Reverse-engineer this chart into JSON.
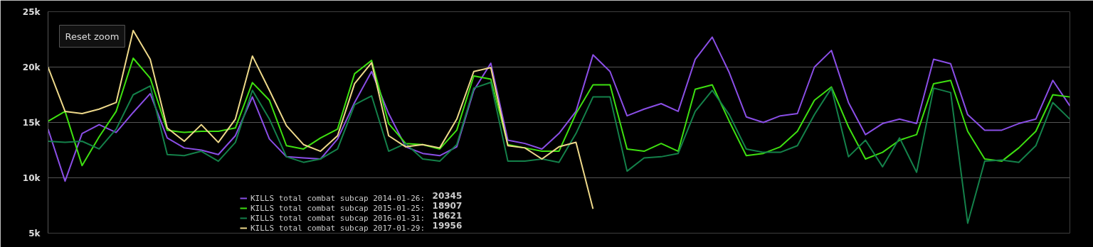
{
  "chart_data": {
    "type": "line",
    "categories": [
      null,
      null,
      null,
      null,
      null,
      null,
      null,
      null,
      null,
      null,
      null,
      null,
      null,
      null,
      null,
      null,
      null,
      null,
      null,
      null,
      null,
      null,
      null,
      null,
      null,
      null,
      null,
      null,
      null,
      null,
      null,
      null,
      null,
      null,
      null,
      null,
      null,
      null,
      null,
      null,
      null,
      null,
      null,
      null,
      null,
      null,
      null,
      null,
      null,
      null,
      null,
      null,
      null,
      null,
      null,
      null,
      null,
      null,
      null,
      null,
      null
    ],
    "ylim": [
      5000,
      25000
    ],
    "yticks": [
      {
        "value": 5000,
        "label": "5k"
      },
      {
        "value": 10000,
        "label": "10k"
      },
      {
        "value": 15000,
        "label": "15k"
      },
      {
        "value": 20000,
        "label": "20k"
      },
      {
        "value": 25000,
        "label": "25k"
      }
    ],
    "grid": "y",
    "legend": "bottom",
    "marker": "none",
    "line_style": "solid",
    "annotations": [
      "Reset zoom",
      "20345",
      "18907",
      "18621",
      "19956"
    ],
    "series": [
      {
        "name": "KILLS total combat subcap 2014-01-26:",
        "color": "#8a4ee6",
        "values": [
          14400,
          9700,
          14000,
          14800,
          14100,
          15900,
          17600,
          13600,
          12700,
          12500,
          12100,
          13800,
          17300,
          13500,
          11900,
          11800,
          11700,
          13500,
          16800,
          19600,
          15800,
          12800,
          12200,
          12000,
          12800,
          17900,
          20345,
          13400,
          13100,
          12600,
          14000,
          16000,
          21100,
          19600,
          15600,
          16200,
          16700,
          16000,
          20700,
          22700,
          19500,
          15500,
          15000,
          15600,
          15800,
          20000,
          21500,
          16800,
          13900,
          14900,
          15300,
          14900,
          20700,
          20300,
          15700,
          14300,
          14300,
          14900,
          15300,
          18800,
          16500
        ]
      },
      {
        "name": "KILLS total combat subcap 2015-01-25:",
        "color": "#3ee010",
        "values": [
          15100,
          16000,
          11100,
          13700,
          16000,
          20800,
          19000,
          14300,
          14100,
          14200,
          14200,
          14500,
          18600,
          17000,
          12900,
          12600,
          13600,
          14400,
          19400,
          20600,
          14900,
          13100,
          13000,
          12600,
          14300,
          19200,
          18907,
          13000,
          12700,
          12400,
          12400,
          15800,
          18400,
          18400,
          12600,
          12400,
          13100,
          12400,
          18000,
          18400,
          15100,
          12000,
          12200,
          12800,
          14200,
          17000,
          18200,
          14600,
          11700,
          12300,
          13400,
          13900,
          18500,
          18800,
          14200,
          11700,
          11500,
          12700,
          14200,
          17500,
          17300
        ]
      },
      {
        "name": "KILLS total combat subcap 2016-01-31:",
        "color": "#14814a",
        "values": [
          13300,
          13200,
          13300,
          12600,
          14400,
          17500,
          18300,
          12100,
          12000,
          12400,
          11500,
          13200,
          17900,
          15300,
          11900,
          11400,
          11700,
          12600,
          16600,
          17400,
          12400,
          13100,
          11700,
          11500,
          13000,
          18100,
          18621,
          11500,
          11500,
          11700,
          11400,
          14000,
          17300,
          17300,
          10600,
          11800,
          11900,
          12200,
          16000,
          17900,
          15700,
          12600,
          12300,
          12300,
          12900,
          15700,
          18100,
          11900,
          13400,
          11000,
          13600,
          10500,
          18100,
          17700,
          5900,
          11500,
          11600,
          11400,
          12900,
          16800,
          15300
        ]
      },
      {
        "name": "KILLS total combat subcap 2017-01-29:",
        "color": "#eed98a",
        "values": [
          20000,
          16000,
          15800,
          16200,
          16800,
          23300,
          20700,
          14500,
          13300,
          14800,
          13200,
          15300,
          21000,
          17900,
          14700,
          13000,
          12400,
          13800,
          18500,
          20400,
          13800,
          12800,
          13000,
          12700,
          15300,
          19600,
          19956,
          12900,
          12700,
          11700,
          12800,
          13200,
          7200,
          null,
          null,
          null,
          null,
          null,
          null,
          null,
          null,
          null,
          null,
          null,
          null,
          null,
          null,
          null,
          null,
          null,
          null,
          null,
          null,
          null,
          null,
          null,
          null,
          null,
          null,
          null,
          null
        ]
      }
    ]
  }
}
